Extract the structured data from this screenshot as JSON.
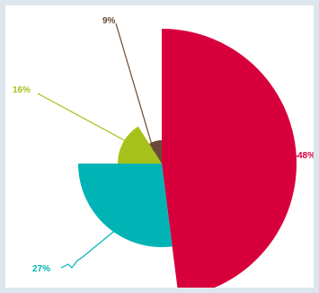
{
  "chart_data": {
    "type": "pie",
    "variant": "variable-radius (rose) pie",
    "slices": [
      {
        "label": "48%",
        "value": 48,
        "color": "#d8003c"
      },
      {
        "label": "27%",
        "value": 27,
        "color": "#00b3b5"
      },
      {
        "label": "16%",
        "value": 16,
        "color": "#a6c21a"
      },
      {
        "label": "9%",
        "value": 9,
        "color": "#6a4a36"
      }
    ],
    "title": "",
    "legend": "none"
  }
}
